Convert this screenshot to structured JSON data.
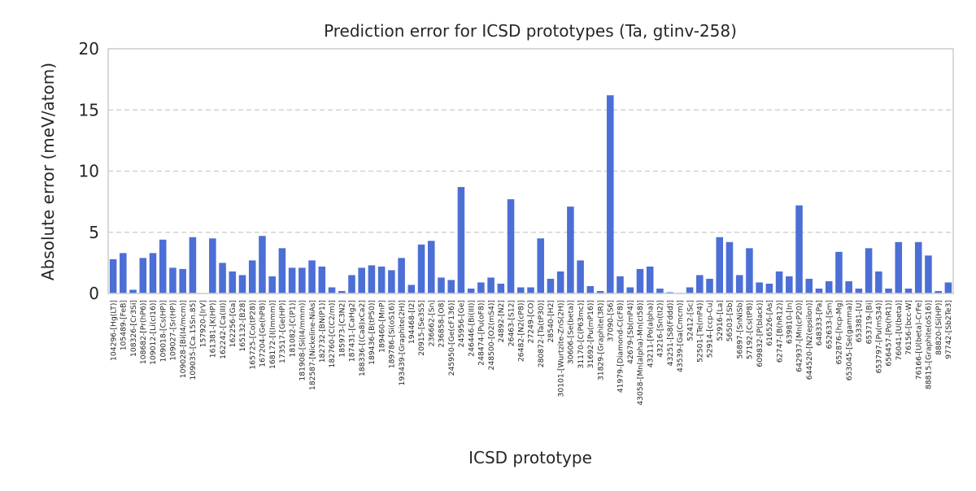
{
  "chart_data": {
    "type": "bar",
    "title": "Prediction error for ICSD prototypes (Ta, gtinv-258)",
    "xlabel": "ICSD prototype",
    "ylabel": "Absolute error (meV/atom)",
    "ylim": [
      0,
      20
    ],
    "yticks": [
      0,
      5,
      10,
      15,
      20
    ],
    "grid": "horizontal dashed",
    "bar_color": "#4c6fd6",
    "categories": [
      "104296-[Hg(LT)]",
      "105489-[FeB]",
      "108326-[Cr3Si]",
      "108682-[Pr(hP6)]",
      "109012-[Li(cI16)]",
      "109018-[Cs(HP)]",
      "109027-[Sr(HP)]",
      "109028-[Bi(I4/mcm)]",
      "109035-[Ca.15Sn.85]",
      "157920-[IrV]",
      "161381-[K(HP)]",
      "162242-[Ca(III)]",
      "162256-[Ga]",
      "165132-[B28]",
      "165725-[Co(tP28)]",
      "167204-[Ge(hP8)]",
      "168172-[I(Immm)]",
      "173517-[Ge(HP)]",
      "181082-[C(P1)]",
      "181908-[Si(I4/mmm)]",
      "182587-[Nickeline-NiAs]",
      "182732-[BN(P1)]",
      "182760-[C(C2/m)]",
      "185973-[C3N2]",
      "187431-[CaHg2]",
      "188336-[(Ca8)xCa2]",
      "189436-[B(tP50)]",
      "189460-[MnP]",
      "189786-[Si(oS16)]",
      "193439-[Graphite(2H)]",
      "194468-[I2]",
      "20915-[Se3S5]",
      "236662-[Sn]",
      "236858-[O8]",
      "245950-[Ge(cF136)]",
      "245956-[Ge]",
      "246446-[Bi(III)]",
      "248474-[Pu(oF8)]",
      "248500-[O2(mS4)]",
      "24892-[N2]",
      "26463-[S12]",
      "26482-[N2(cP8)]",
      "27249-[CO]",
      "280872-[Ta(tP30)]",
      "28540-[H2]",
      "30101-[Wurtzite-ZnS(2H)]",
      "30606-[Se(beta)]",
      "31170-[C(P63mc)]",
      "31692-[Pu(mP16)]",
      "31829-[Graphite(3R)]",
      "37090-[S6]",
      "41979-[Diamond-C(cF8)]",
      "42679-[Sb(mP4)]",
      "43058-[Mn(alpha)-Mn(cI58)]",
      "43211-[Po(alpha)]",
      "43216-[Sn(tI2)]",
      "43251-[S8(Fddd)]",
      "43539-[Ga(Cmcm)]",
      "52412-[Sc]",
      "52501-[Te(mP4)]",
      "52914-[ccp-Cu]",
      "52916-[La]",
      "56503-[Sb]",
      "56897-[SnNiSb]",
      "57192-[Cs(tP8)]",
      "609832-[P(black)]",
      "616526-[As]",
      "62747-[B(hR12)]",
      "639810-[In]",
      "642937-[Mn(cP20)]",
      "644520-[N2(epsilon)]",
      "648333-[Pa]",
      "652633-[Sm]",
      "652876-[hcp-Mg]",
      "653045-[Se(gamma)]",
      "653381-[U]",
      "653719-[Bi]",
      "653797-[Pu(mS34)]",
      "656457-[Po(hR1)]",
      "76041-[U(beta)]",
      "76156-[bcc-W]",
      "76166-[U(beta)-CrFe]",
      "88815-[Graphite(oS16)]",
      "88820-[Si(HP)]",
      "97742-[Sb2Te3]"
    ],
    "values": [
      2.8,
      3.3,
      0.3,
      2.9,
      3.3,
      4.4,
      2.1,
      2.0,
      4.6,
      0.0,
      4.5,
      2.5,
      1.8,
      1.5,
      2.7,
      4.7,
      1.4,
      3.7,
      2.1,
      2.1,
      2.7,
      2.2,
      0.5,
      0.2,
      1.5,
      2.1,
      2.3,
      2.2,
      1.9,
      2.9,
      0.7,
      4.0,
      4.3,
      1.3,
      1.1,
      8.7,
      0.4,
      0.9,
      1.3,
      0.8,
      7.7,
      0.5,
      0.5,
      4.5,
      1.2,
      1.8,
      7.1,
      2.7,
      0.6,
      0.2,
      16.2,
      1.4,
      0.5,
      2.0,
      2.2,
      0.4,
      0.1,
      0.05,
      0.5,
      1.5,
      1.2,
      4.6,
      4.2,
      1.5,
      3.7,
      0.9,
      0.8,
      1.8,
      1.4,
      7.2,
      1.2,
      0.4,
      1.0,
      3.4,
      1.0,
      0.4,
      3.7,
      1.8,
      0.4,
      4.2,
      0.4,
      4.2,
      3.1,
      0.2,
      0.9
    ]
  }
}
